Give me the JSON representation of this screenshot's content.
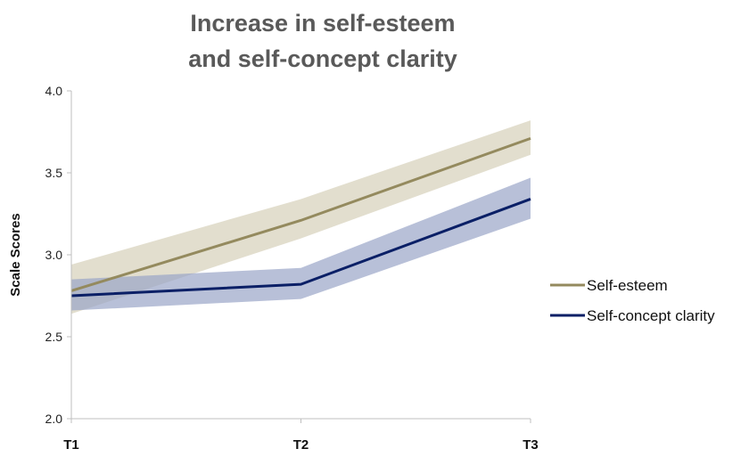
{
  "chart_data": {
    "type": "line",
    "title": [
      "Increase in self-esteem",
      "and self-concept clarity"
    ],
    "ylabel": "Scale Scores",
    "xlabel": "",
    "categories": [
      "T1",
      "T2",
      "T3"
    ],
    "ylim": [
      2.0,
      4.0
    ],
    "yticks": [
      "2.0",
      "2.5",
      "3.0",
      "3.5",
      "4.0"
    ],
    "yticks_values": [
      2.0,
      2.5,
      3.0,
      3.5,
      4.0
    ],
    "grid": false,
    "legend_position": "right",
    "series": [
      {
        "name": "Self-esteem",
        "values": [
          2.78,
          3.21,
          3.71
        ],
        "lower": [
          2.64,
          3.1,
          3.61
        ],
        "upper": [
          2.94,
          3.34,
          3.82
        ],
        "color": "#948a5e",
        "band_color": "#ddd8c5"
      },
      {
        "name": "Self-concept clarity",
        "values": [
          2.75,
          2.82,
          3.34
        ],
        "lower": [
          2.66,
          2.73,
          3.22
        ],
        "upper": [
          2.85,
          2.92,
          3.47
        ],
        "color": "#0a1f66",
        "band_color": "#9aa5c8"
      }
    ]
  }
}
